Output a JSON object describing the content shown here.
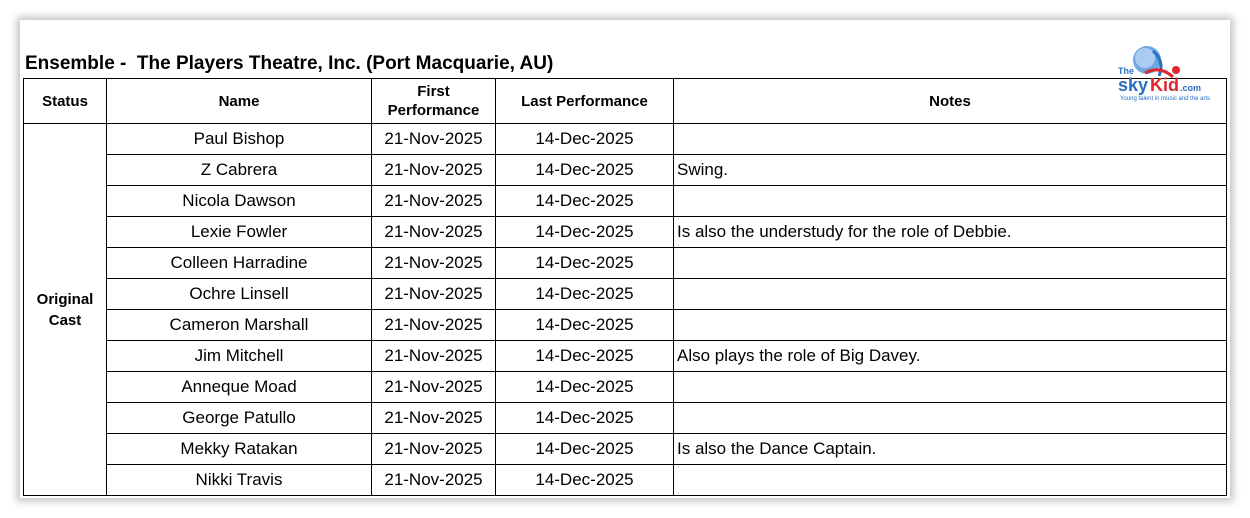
{
  "title": "Ensemble -  The Players Theatre, Inc. (Port Macquarie, AU)",
  "logo": {
    "the": "The",
    "sky": "sky",
    "kid": "Kid",
    "com": ".com",
    "tagline": "Young talent in music and the arts"
  },
  "columns": {
    "status": "Status",
    "name": "Name",
    "first": "First Performance",
    "last": "Last Performance",
    "notes": "Notes"
  },
  "status_group": "Original Cast",
  "rows": [
    {
      "name": "Paul Bishop",
      "first": "21-Nov-2025",
      "last": "14-Dec-2025",
      "notes": ""
    },
    {
      "name": "Z Cabrera",
      "first": "21-Nov-2025",
      "last": "14-Dec-2025",
      "notes": "Swing."
    },
    {
      "name": "Nicola Dawson",
      "first": "21-Nov-2025",
      "last": "14-Dec-2025",
      "notes": ""
    },
    {
      "name": "Lexie Fowler",
      "first": "21-Nov-2025",
      "last": "14-Dec-2025",
      "notes": "Is also the understudy for the role of Debbie."
    },
    {
      "name": "Colleen Harradine",
      "first": "21-Nov-2025",
      "last": "14-Dec-2025",
      "notes": ""
    },
    {
      "name": "Ochre Linsell",
      "first": "21-Nov-2025",
      "last": "14-Dec-2025",
      "notes": ""
    },
    {
      "name": "Cameron Marshall",
      "first": "21-Nov-2025",
      "last": "14-Dec-2025",
      "notes": ""
    },
    {
      "name": "Jim Mitchell",
      "first": "21-Nov-2025",
      "last": "14-Dec-2025",
      "notes": "Also plays the role of Big Davey."
    },
    {
      "name": "Anneque Moad",
      "first": "21-Nov-2025",
      "last": "14-Dec-2025",
      "notes": ""
    },
    {
      "name": "George Patullo",
      "first": "21-Nov-2025",
      "last": "14-Dec-2025",
      "notes": ""
    },
    {
      "name": "Mekky Ratakan",
      "first": "21-Nov-2025",
      "last": "14-Dec-2025",
      "notes": "Is also the Dance Captain."
    },
    {
      "name": "Nikki Travis",
      "first": "21-Nov-2025",
      "last": "14-Dec-2025",
      "notes": ""
    }
  ]
}
